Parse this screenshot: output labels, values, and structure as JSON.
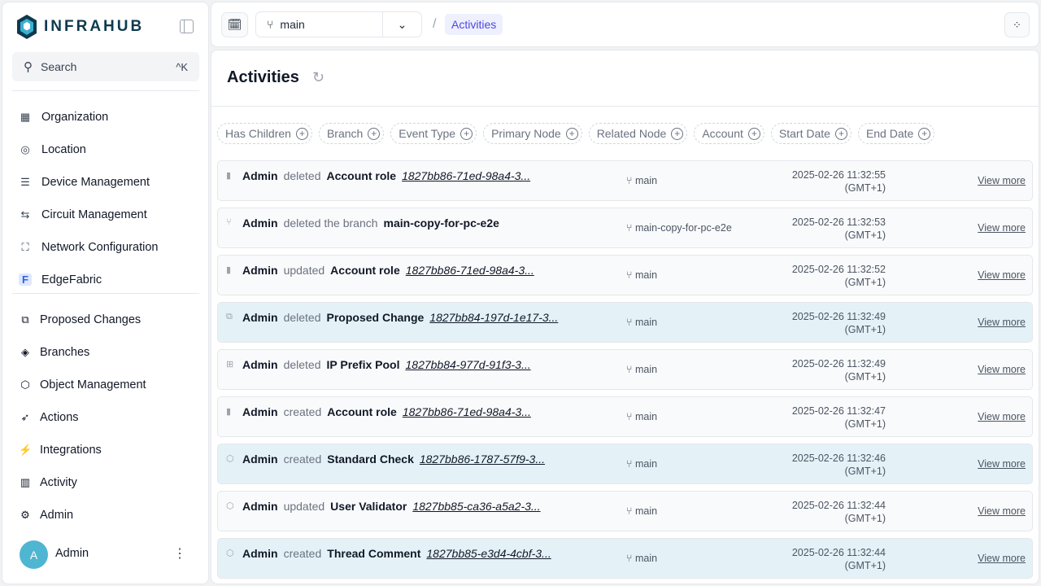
{
  "sidebar": {
    "brand": "INFRAHUB",
    "search": {
      "label": "Search",
      "shortcut": "^K"
    },
    "top_items": [
      {
        "label": "Organization",
        "icon": "building-icon"
      },
      {
        "label": "Location",
        "icon": "pin-icon"
      },
      {
        "label": "Device Management",
        "icon": "server-icon"
      },
      {
        "label": "Circuit Management",
        "icon": "circuit-icon"
      },
      {
        "label": "Network Configuration",
        "icon": "network-icon"
      },
      {
        "label": "EdgeFabric",
        "icon": "F"
      }
    ],
    "bottom_items": [
      {
        "label": "Proposed Changes",
        "icon": "proposed-changes-icon"
      },
      {
        "label": "Branches",
        "icon": "layers-icon"
      },
      {
        "label": "Object Management",
        "icon": "cube-icon"
      },
      {
        "label": "Actions",
        "icon": "rocket-icon"
      },
      {
        "label": "Integrations",
        "icon": "plug-icon"
      },
      {
        "label": "Activity",
        "icon": "chart-icon"
      },
      {
        "label": "Admin",
        "icon": "gear-icon"
      }
    ],
    "user": {
      "initial": "A",
      "name": "Admin"
    }
  },
  "header": {
    "branch": "main",
    "breadcrumb": "Activities"
  },
  "main": {
    "title": "Activities",
    "filters": [
      "Has Children",
      "Branch",
      "Event Type",
      "Primary Node",
      "Related Node",
      "Account",
      "Start Date",
      "End Date"
    ],
    "view_more": "View more",
    "rows": [
      {
        "icon": "▮",
        "actor": "Admin",
        "action": "deleted",
        "kind": "Account role",
        "id": "1827bb86-71ed-98a4-3...",
        "branch": "main",
        "date": "2025-02-26 11:32:55",
        "tz": "(GMT+1)",
        "highlighted": false
      },
      {
        "icon": "⑂",
        "actor": "Admin",
        "action": "deleted the branch",
        "kind": "main-copy-for-pc-e2e",
        "id": "",
        "branch": "main-copy-for-pc-e2e",
        "date": "2025-02-26 11:32:53",
        "tz": "(GMT+1)",
        "highlighted": false
      },
      {
        "icon": "▮",
        "actor": "Admin",
        "action": "updated",
        "kind": "Account role",
        "id": "1827bb86-71ed-98a4-3...",
        "branch": "main",
        "date": "2025-02-26 11:32:52",
        "tz": "(GMT+1)",
        "highlighted": false
      },
      {
        "icon": "⧉",
        "actor": "Admin",
        "action": "deleted",
        "kind": "Proposed Change",
        "id": "1827bb84-197d-1e17-3...",
        "branch": "main",
        "date": "2025-02-26 11:32:49",
        "tz": "(GMT+1)",
        "highlighted": true
      },
      {
        "icon": "⊞",
        "actor": "Admin",
        "action": "deleted",
        "kind": "IP Prefix Pool",
        "id": "1827bb84-977d-91f3-3...",
        "branch": "main",
        "date": "2025-02-26 11:32:49",
        "tz": "(GMT+1)",
        "highlighted": false
      },
      {
        "icon": "▮",
        "actor": "Admin",
        "action": "created",
        "kind": "Account role",
        "id": "1827bb86-71ed-98a4-3...",
        "branch": "main",
        "date": "2025-02-26 11:32:47",
        "tz": "(GMT+1)",
        "highlighted": false
      },
      {
        "icon": "⬡",
        "actor": "Admin",
        "action": "created",
        "kind": "Standard Check",
        "id": "1827bb86-1787-57f9-3...",
        "branch": "main",
        "date": "2025-02-26 11:32:46",
        "tz": "(GMT+1)",
        "highlighted": true
      },
      {
        "icon": "⬡",
        "actor": "Admin",
        "action": "updated",
        "kind": "User Validator",
        "id": "1827bb85-ca36-a5a2-3...",
        "branch": "main",
        "date": "2025-02-26 11:32:44",
        "tz": "(GMT+1)",
        "highlighted": false
      },
      {
        "icon": "⬡",
        "actor": "Admin",
        "action": "created",
        "kind": "Thread Comment",
        "id": "1827bb85-e3d4-4cbf-3...",
        "branch": "main",
        "date": "2025-02-26 11:32:44",
        "tz": "(GMT+1)",
        "highlighted": true
      }
    ]
  },
  "colors": {
    "accent": "#4f46e5",
    "highlight_row": "#e4f2f7",
    "avatar": "#4fb6d2",
    "brand": "#0f3a4f"
  }
}
